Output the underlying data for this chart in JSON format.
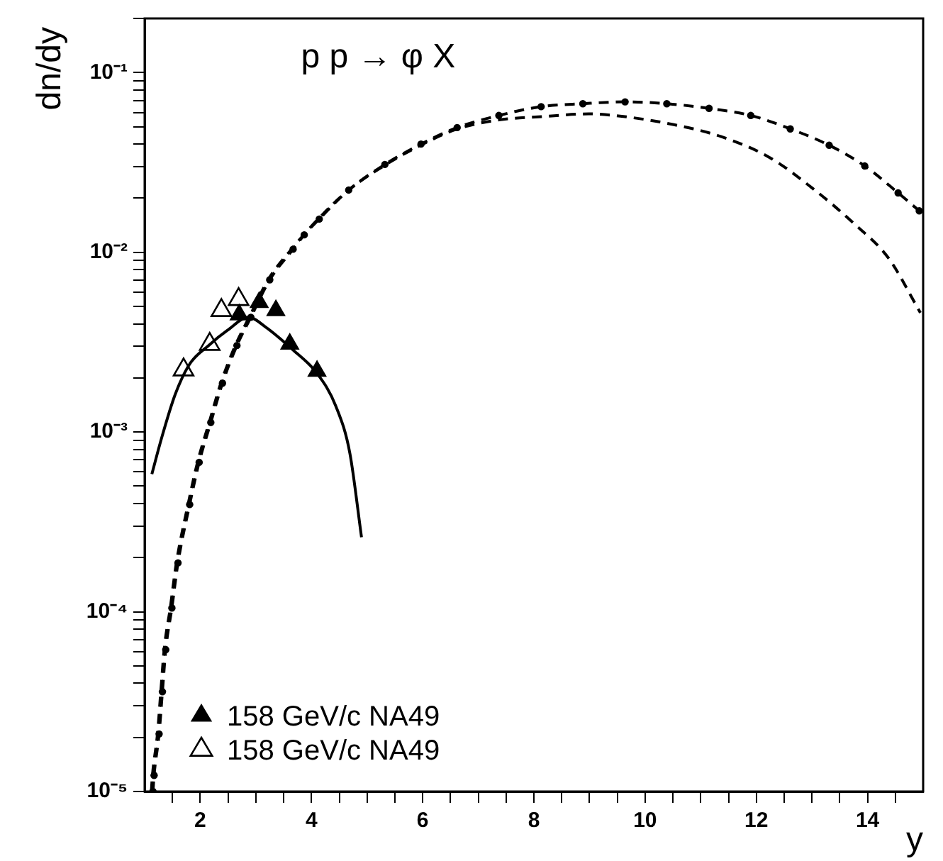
{
  "chart_data": {
    "type": "line",
    "title": "p p → φ X",
    "xlabel": "y",
    "ylabel": "dn/dy",
    "log": "y",
    "grid": false,
    "legend": "bottom left",
    "xlim": [
      1,
      15
    ],
    "ylim": [
      1e-05,
      0.2
    ],
    "xticks": [
      {
        "value": 1.5,
        "label": null
      },
      2,
      {
        "value": 2.5,
        "label": null
      },
      {
        "value": 3,
        "label": null
      },
      {
        "value": 3.5,
        "label": null
      },
      4,
      {
        "value": 4.5,
        "label": null
      },
      {
        "value": 5,
        "label": null
      },
      {
        "value": 5.5,
        "label": null
      },
      6,
      {
        "value": 6.5,
        "label": null
      },
      {
        "value": 7,
        "label": null
      },
      {
        "value": 7.5,
        "label": null
      },
      8,
      {
        "value": 8.5,
        "label": null
      },
      {
        "value": 9,
        "label": null
      },
      {
        "value": 9.5,
        "label": null
      },
      10,
      {
        "value": 10.5,
        "label": null
      },
      {
        "value": 11,
        "label": null
      },
      {
        "value": 11.5,
        "label": null
      },
      12,
      {
        "value": 12.5,
        "label": null
      },
      {
        "value": 13,
        "label": null
      },
      {
        "value": 13.5,
        "label": null
      },
      14,
      {
        "value": 14.5,
        "label": null
      }
    ],
    "yticks": [
      {
        "value": 1e-05,
        "label": "10⁻⁵"
      },
      {
        "value": 2e-05,
        "label": null
      },
      {
        "value": 3e-05,
        "label": null
      },
      {
        "value": 4e-05,
        "label": null
      },
      {
        "value": 5e-05,
        "label": null
      },
      {
        "value": 6e-05,
        "label": null
      },
      {
        "value": 7e-05,
        "label": null
      },
      {
        "value": 8e-05,
        "label": null
      },
      {
        "value": 9e-05,
        "label": null
      },
      {
        "value": 0.0001,
        "label": "10⁻⁴"
      },
      {
        "value": 0.0002,
        "label": null
      },
      {
        "value": 0.0003,
        "label": null
      },
      {
        "value": 0.0004,
        "label": null
      },
      {
        "value": 0.0005,
        "label": null
      },
      {
        "value": 0.0006,
        "label": null
      },
      {
        "value": 0.0007,
        "label": null
      },
      {
        "value": 0.0008,
        "label": null
      },
      {
        "value": 0.0009,
        "label": null
      },
      {
        "value": 0.001,
        "label": "10⁻³"
      },
      {
        "value": 0.002,
        "label": null
      },
      {
        "value": 0.003,
        "label": null
      },
      {
        "value": 0.004,
        "label": null
      },
      {
        "value": 0.005,
        "label": null
      },
      {
        "value": 0.006,
        "label": null
      },
      {
        "value": 0.007,
        "label": null
      },
      {
        "value": 0.008,
        "label": null
      },
      {
        "value": 0.009,
        "label": null
      },
      {
        "value": 0.01,
        "label": "10⁻²"
      },
      {
        "value": 0.02,
        "label": null
      },
      {
        "value": 0.03,
        "label": null
      },
      {
        "value": 0.04,
        "label": null
      },
      {
        "value": 0.05,
        "label": null
      },
      {
        "value": 0.06,
        "label": null
      },
      {
        "value": 0.07,
        "label": null
      },
      {
        "value": 0.08,
        "label": null
      },
      {
        "value": 0.09,
        "label": null
      },
      {
        "value": 0.1,
        "label": "10⁻¹"
      },
      {
        "value": 0.2,
        "label": null
      }
    ],
    "series": [
      {
        "color": "#000000",
        "line_style": "solid",
        "marker": "none",
        "x": [
          1.13,
          1.3,
          1.55,
          1.81,
          2.15,
          2.49,
          2.87,
          3.17,
          3.67,
          4.1,
          4.44,
          4.69,
          4.9
        ],
        "values": [
          0.000583,
          0.000914,
          0.00162,
          0.00239,
          0.00303,
          0.00368,
          0.00435,
          0.00385,
          0.00286,
          0.00212,
          0.00139,
          0.000764,
          0.00026
        ]
      },
      {
        "color": "#000000",
        "line_style": "dashed",
        "marker": "circle",
        "x": [
          1.15,
          1.17,
          1.26,
          1.32,
          1.38,
          1.49,
          1.6,
          1.81,
          1.98,
          2.19,
          2.4,
          2.66,
          2.91,
          3.25,
          3.67,
          3.87,
          4.14,
          4.67,
          5.32,
          5.97,
          6.62,
          7.37,
          8.13,
          8.88,
          9.64,
          10.39,
          11.15,
          11.9,
          12.61,
          13.31,
          13.95,
          14.55,
          14.93
        ],
        "values": [
          1e-05,
          1.23e-05,
          2.09e-05,
          3.59e-05,
          6.15e-05,
          0.000105,
          0.000187,
          0.000395,
          0.000678,
          0.00113,
          0.00187,
          0.00303,
          0.00435,
          0.00703,
          0.0104,
          0.0125,
          0.0153,
          0.0222,
          0.0308,
          0.04,
          0.0494,
          0.0577,
          0.0646,
          0.0671,
          0.0687,
          0.0671,
          0.0632,
          0.0577,
          0.0486,
          0.0394,
          0.0302,
          0.0214,
          0.017
        ]
      },
      {
        "color": "#000000",
        "line_style": "dashed",
        "marker": "none",
        "x": [
          1.12,
          1.14,
          1.23,
          1.29,
          1.35,
          1.46,
          1.57,
          1.78,
          1.95,
          2.16,
          2.37,
          2.63,
          2.88,
          3.22,
          3.64,
          4.12,
          4.67,
          5.32,
          5.97,
          6.62,
          7.37,
          8.13,
          8.99,
          9.64,
          10.5,
          11.36,
          12.23,
          12.98,
          13.74,
          14.38,
          14.95
        ],
        "values": [
          1e-05,
          1.23e-05,
          2.09e-05,
          3.59e-05,
          6.15e-05,
          0.000105,
          0.000187,
          0.000395,
          0.000678,
          0.00113,
          0.00187,
          0.00303,
          0.00435,
          0.00703,
          0.0104,
          0.0153,
          0.0222,
          0.0305,
          0.0395,
          0.0485,
          0.0545,
          0.0568,
          0.0589,
          0.0568,
          0.0514,
          0.0441,
          0.0338,
          0.0231,
          0.0146,
          0.00925,
          0.00461
        ]
      },
      {
        "type": "scatter",
        "name": "158 GeV/c NA49",
        "color": "#000000",
        "marker": "triangle",
        "x": [
          2.7,
          3.06,
          3.36,
          3.61,
          4.1
        ],
        "values": [
          0.00449,
          0.00527,
          0.00475,
          0.00309,
          0.00218
        ]
      },
      {
        "type": "scatter",
        "name": "158 GeV/c NA49",
        "color": "#000000",
        "marker": "triangle-open",
        "x": [
          1.7,
          2.17,
          2.38,
          2.69
        ],
        "values": [
          0.00222,
          0.00308,
          0.00475,
          0.00547
        ]
      }
    ]
  }
}
